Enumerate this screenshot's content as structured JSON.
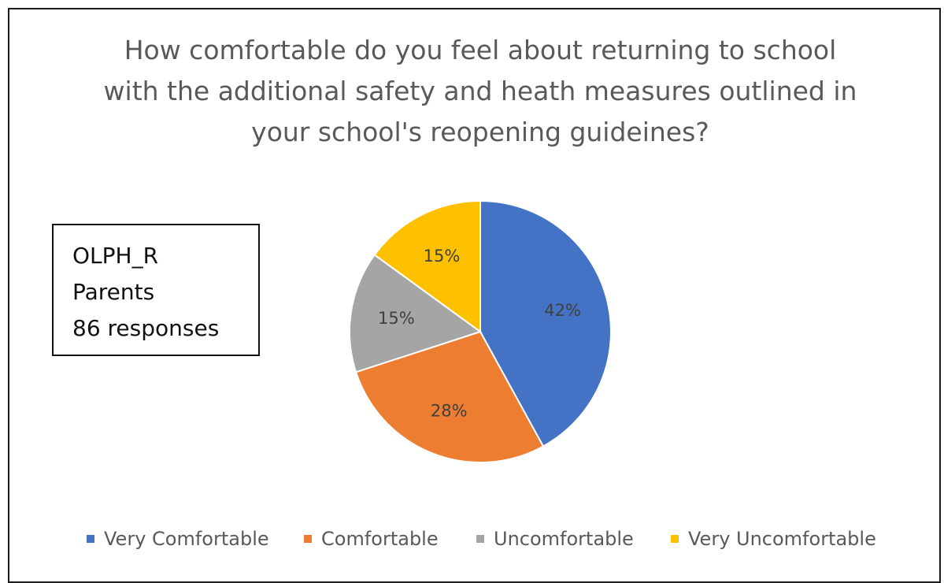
{
  "chart_data": {
    "type": "pie",
    "title": "How comfortable do you feel about returning to school with the additional safety and heath measures outlined in your school's reopening guideines?",
    "title_lines": [
      "How comfortable do you feel about returning to school",
      "with the additional safety and heath measures outlined in",
      "your school's reopening guideines?"
    ],
    "categories": [
      "Very Comfortable",
      "Comfortable",
      "Uncomfortable",
      "Very Uncomfortable"
    ],
    "values": [
      42,
      28,
      15,
      15
    ],
    "data_labels": [
      "42%",
      "28%",
      "15%",
      "15%"
    ],
    "colors": [
      "#4472C4",
      "#ED7D31",
      "#A5A5A5",
      "#FFC000"
    ],
    "legend_position": "bottom"
  },
  "info_box": {
    "line1": "OLPH_R",
    "line2": "Parents",
    "line3": "86 responses"
  }
}
